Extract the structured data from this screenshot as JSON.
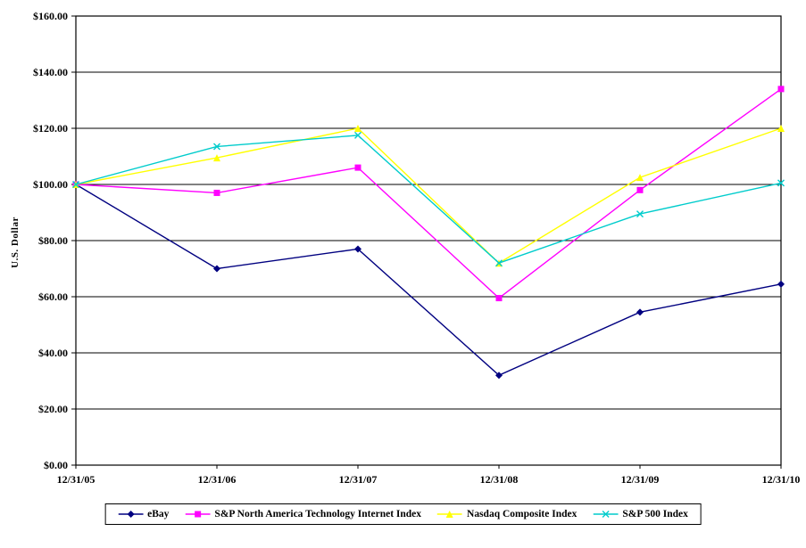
{
  "chart_data": {
    "type": "line",
    "title": "",
    "xlabel": "",
    "ylabel": "U.S. Dollar",
    "ylim": [
      0,
      160
    ],
    "y_tick_step": 20,
    "y_tick_labels": [
      "$0.00",
      "$20.00",
      "$40.00",
      "$60.00",
      "$80.00",
      "$100.00",
      "$120.00",
      "$140.00",
      "$160.00"
    ],
    "categories": [
      "12/31/05",
      "12/31/06",
      "12/31/07",
      "12/31/08",
      "12/31/09",
      "12/31/10"
    ],
    "grid": "horizontal",
    "legend_position": "bottom",
    "axis_color": "#000000",
    "series": [
      {
        "name": "eBay",
        "color": "#000080",
        "marker": "diamond",
        "values": [
          100.0,
          70.0,
          77.0,
          32.0,
          54.5,
          64.5
        ]
      },
      {
        "name": "S&P North America  Technology  Internet  Index",
        "color": "#FF00FF",
        "marker": "square",
        "values": [
          100.0,
          97.0,
          106.0,
          59.5,
          98.0,
          134.0
        ]
      },
      {
        "name": "Nasdaq Composite Index",
        "color": "#FFFF00",
        "marker": "triangle",
        "values": [
          100.0,
          109.5,
          120.0,
          72.0,
          102.5,
          120.0
        ]
      },
      {
        "name": "S&P 500 Index",
        "color": "#00CCCC",
        "marker": "x",
        "values": [
          100.0,
          113.5,
          117.5,
          72.0,
          89.5,
          100.5
        ]
      }
    ]
  }
}
